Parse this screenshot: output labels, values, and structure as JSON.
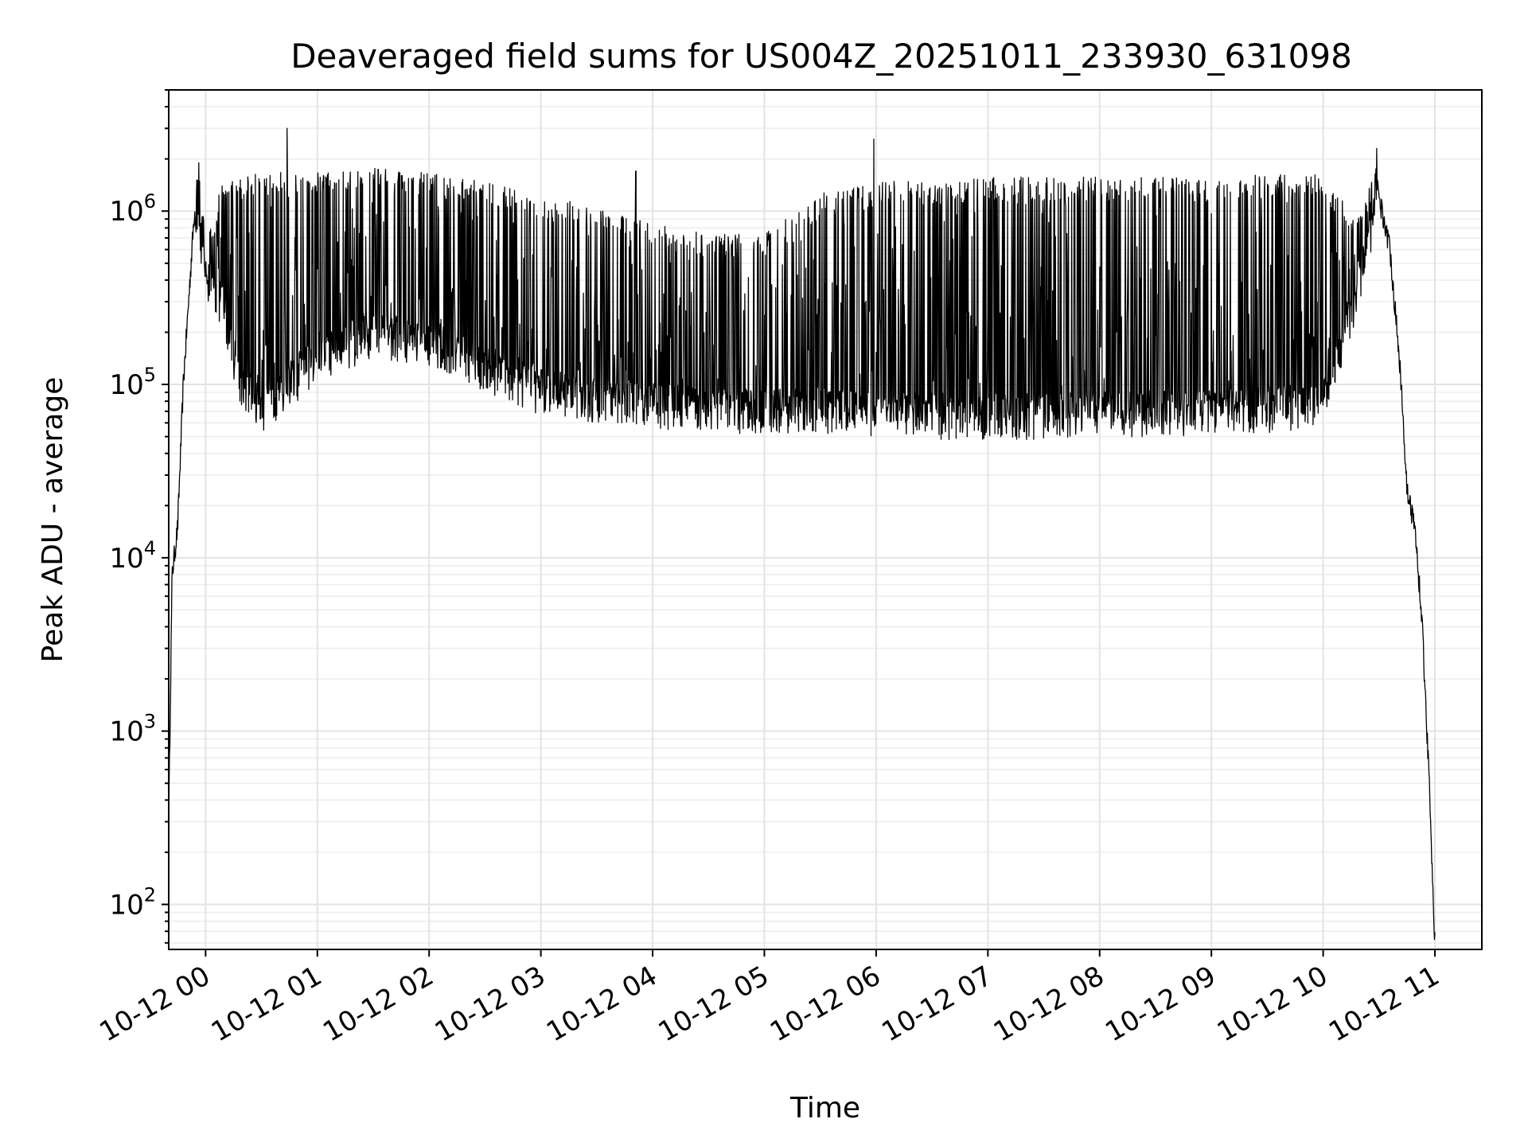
{
  "chart_data": {
    "type": "line",
    "title": "Deaveraged field sums for US004Z_20251011_233930_631098",
    "xlabel": "Time",
    "ylabel": "Peak ADU - average",
    "yscale": "log",
    "ylim": [
      55,
      5000000
    ],
    "xlim_hours": [
      -0.33,
      11.42
    ],
    "grid": true,
    "line_color": "#000000",
    "x_ticks": [
      {
        "hour": 0,
        "label": "10-12 00"
      },
      {
        "hour": 1,
        "label": "10-12 01"
      },
      {
        "hour": 2,
        "label": "10-12 02"
      },
      {
        "hour": 3,
        "label": "10-12 03"
      },
      {
        "hour": 4,
        "label": "10-12 04"
      },
      {
        "hour": 5,
        "label": "10-12 05"
      },
      {
        "hour": 6,
        "label": "10-12 06"
      },
      {
        "hour": 7,
        "label": "10-12 07"
      },
      {
        "hour": 8,
        "label": "10-12 08"
      },
      {
        "hour": 9,
        "label": "10-12 09"
      },
      {
        "hour": 10,
        "label": "10-12 10"
      },
      {
        "hour": 11,
        "label": "10-12 11"
      }
    ],
    "y_ticks": [
      {
        "value": 100,
        "base": "10",
        "exp": "2"
      },
      {
        "value": 1000,
        "base": "10",
        "exp": "3"
      },
      {
        "value": 10000,
        "base": "10",
        "exp": "4"
      },
      {
        "value": 100000,
        "base": "10",
        "exp": "5"
      },
      {
        "value": 1000000,
        "base": "10",
        "exp": "6"
      }
    ],
    "envelope": [
      {
        "hour": -0.33,
        "baseline": 300,
        "peak": 300
      },
      {
        "hour": -0.3,
        "baseline": 8000,
        "peak": 9000
      },
      {
        "hour": -0.25,
        "baseline": 15000,
        "peak": 20000
      },
      {
        "hour": -0.2,
        "baseline": 100000,
        "peak": 150000
      },
      {
        "hour": -0.1,
        "baseline": 1000000,
        "peak": 1400000
      },
      {
        "hour": -0.05,
        "baseline": 700000,
        "peak": 1800000
      },
      {
        "hour": 0.0,
        "baseline": 450000,
        "peak": 600000
      },
      {
        "hour": 0.15,
        "baseline": 300000,
        "peak": 1400000
      },
      {
        "hour": 0.3,
        "baseline": 110000,
        "peak": 1500000
      },
      {
        "hour": 0.5,
        "baseline": 75000,
        "peak": 1600000
      },
      {
        "hour": 0.8,
        "baseline": 110000,
        "peak": 1600000
      },
      {
        "hour": 1.0,
        "baseline": 150000,
        "peak": 1600000
      },
      {
        "hour": 1.5,
        "baseline": 200000,
        "peak": 1700000
      },
      {
        "hour": 2.0,
        "baseline": 180000,
        "peak": 1600000
      },
      {
        "hour": 2.5,
        "baseline": 130000,
        "peak": 1400000
      },
      {
        "hour": 3.0,
        "baseline": 95000,
        "peak": 1200000
      },
      {
        "hour": 3.5,
        "baseline": 85000,
        "peak": 1000000
      },
      {
        "hour": 4.0,
        "baseline": 80000,
        "peak": 800000
      },
      {
        "hour": 4.5,
        "baseline": 75000,
        "peak": 700000
      },
      {
        "hour": 5.0,
        "baseline": 72000,
        "peak": 700000
      },
      {
        "hour": 5.5,
        "baseline": 75000,
        "peak": 1200000
      },
      {
        "hour": 6.0,
        "baseline": 70000,
        "peak": 1400000
      },
      {
        "hour": 7.0,
        "baseline": 68000,
        "peak": 1500000
      },
      {
        "hour": 8.0,
        "baseline": 70000,
        "peak": 1500000
      },
      {
        "hour": 9.0,
        "baseline": 72000,
        "peak": 1500000
      },
      {
        "hour": 9.5,
        "baseline": 75000,
        "peak": 1550000
      },
      {
        "hour": 10.0,
        "baseline": 80000,
        "peak": 1550000
      },
      {
        "hour": 10.3,
        "baseline": 350000,
        "peak": 900000
      },
      {
        "hour": 10.4,
        "baseline": 600000,
        "peak": 1200000
      },
      {
        "hour": 10.48,
        "baseline": 1400000,
        "peak": 2200000
      },
      {
        "hour": 10.6,
        "baseline": 600000,
        "peak": 800000
      },
      {
        "hour": 10.7,
        "baseline": 100000,
        "peak": 120000
      },
      {
        "hour": 10.75,
        "baseline": 25000,
        "peak": 30000
      },
      {
        "hour": 10.82,
        "baseline": 15000,
        "peak": 18000
      },
      {
        "hour": 10.88,
        "baseline": 5000,
        "peak": 5000
      },
      {
        "hour": 10.95,
        "baseline": 500,
        "peak": 500
      },
      {
        "hour": 11.0,
        "baseline": 60,
        "peak": 60
      }
    ],
    "notable_spikes": [
      {
        "hour": 0.73,
        "value": 3000000
      },
      {
        "hour": 5.98,
        "value": 2600000
      },
      {
        "hour": 10.48,
        "value": 2300000
      },
      {
        "hour": -0.06,
        "value": 1900000
      },
      {
        "hour": 3.85,
        "value": 1700000
      }
    ]
  }
}
